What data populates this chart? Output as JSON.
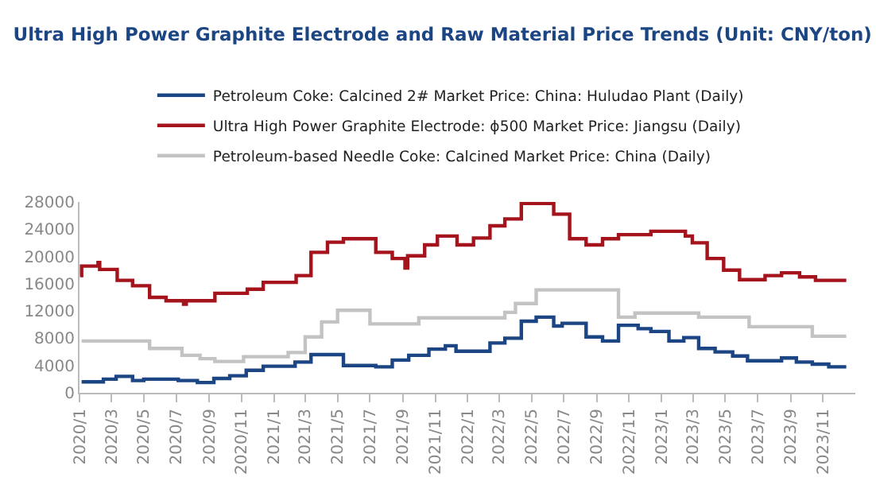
{
  "chart_data": {
    "type": "step",
    "title": "Ultra High Power Graphite Electrode and Raw Material Price Trends (Unit: CNY/ton)",
    "xlim": [
      "2020-01-01",
      "2024-01-01"
    ],
    "xticks": [
      {
        "value": "2020-01",
        "label": "2020/1"
      },
      {
        "value": "2020-03",
        "label": "2020/3"
      },
      {
        "value": "2020-05",
        "label": "2020/5"
      },
      {
        "value": "2020-07",
        "label": "2020/7"
      },
      {
        "value": "2020-09",
        "label": "2020/9"
      },
      {
        "value": "2020-11",
        "label": "2020/11"
      },
      {
        "value": "2021-01",
        "label": "2021/1"
      },
      {
        "value": "2021-03",
        "label": "2021/3"
      },
      {
        "value": "2021-05",
        "label": "2021/5"
      },
      {
        "value": "2021-07",
        "label": "2021/7"
      },
      {
        "value": "2021-09",
        "label": "2021/9"
      },
      {
        "value": "2021-11",
        "label": "2021/11"
      },
      {
        "value": "2022-01",
        "label": "2022/1"
      },
      {
        "value": "2022-03",
        "label": "2022/3"
      },
      {
        "value": "2022-05",
        "label": "2022/5"
      },
      {
        "value": "2022-07",
        "label": "2022/7"
      },
      {
        "value": "2022-09",
        "label": "2022/9"
      },
      {
        "value": "2022-11",
        "label": "2022/11"
      },
      {
        "value": "2023-01",
        "label": "2023/1"
      },
      {
        "value": "2023-03",
        "label": "2023/3"
      },
      {
        "value": "2023-05",
        "label": "2023/5"
      },
      {
        "value": "2023-07",
        "label": "2023/7"
      },
      {
        "value": "2023-09",
        "label": "2023/9"
      },
      {
        "value": "2023-11",
        "label": "2023/11"
      }
    ],
    "ylim": [
      0,
      28000
    ],
    "yticks": [
      0,
      4000,
      8000,
      12000,
      16000,
      20000,
      24000,
      28000
    ],
    "grid": false,
    "legend": "top",
    "line_style": "solid",
    "series": [
      {
        "name": "Petroleum Coke: Calcined 2# Market Price: China: Huludao Plant (Daily)",
        "color": "#1b4583",
        "x": [
          "2020-01-05",
          "2020-02-15",
          "2020-03-10",
          "2020-04-10",
          "2020-05-01",
          "2020-07-05",
          "2020-08-10",
          "2020-09-10",
          "2020-10-10",
          "2020-11-10",
          "2020-12-12",
          "2021-02-10",
          "2021-03-12",
          "2021-05-12",
          "2021-07-12",
          "2021-08-12",
          "2021-09-12",
          "2021-10-20",
          "2021-11-20",
          "2021-12-10",
          "2022-02-12",
          "2022-03-12",
          "2022-04-12",
          "2022-05-10",
          "2022-06-12",
          "2022-06-28",
          "2022-08-12",
          "2022-09-12",
          "2022-10-12",
          "2022-11-18",
          "2022-12-12",
          "2023-01-15",
          "2023-02-12",
          "2023-03-12",
          "2023-04-12",
          "2023-05-15",
          "2023-06-12",
          "2023-08-15",
          "2023-09-12",
          "2023-10-12",
          "2023-11-12",
          "2023-12-15"
        ],
        "values": [
          1600,
          2000,
          2400,
          1800,
          2000,
          1800,
          1500,
          2100,
          2500,
          3300,
          3900,
          4500,
          5600,
          4000,
          3800,
          4800,
          5500,
          6400,
          6900,
          6100,
          7300,
          8000,
          10500,
          11100,
          9800,
          10200,
          8200,
          7600,
          9900,
          9400,
          9000,
          7600,
          8100,
          6500,
          6000,
          5400,
          4700,
          5100,
          4500,
          4200,
          3800,
          3800
        ]
      },
      {
        "name": "Ultra High Power Graphite Electrode: ϕ500 Market Price: Jiangsu (Daily)",
        "color": "#a5141d",
        "x": [
          "2020-01-02",
          "2020-01-05",
          "2020-02-05",
          "2020-02-08",
          "2020-03-12",
          "2020-04-10",
          "2020-05-12",
          "2020-06-12",
          "2020-07-15",
          "2020-07-20",
          "2020-09-12",
          "2020-11-12",
          "2020-12-12",
          "2021-02-12",
          "2021-03-12",
          "2021-04-12",
          "2021-05-12",
          "2021-07-12",
          "2021-08-12",
          "2021-09-05",
          "2021-09-10",
          "2021-10-12",
          "2021-11-05",
          "2021-11-12",
          "2021-12-12",
          "2022-01-12",
          "2022-02-12",
          "2022-03-12",
          "2022-04-12",
          "2022-06-12",
          "2022-07-12",
          "2022-08-12",
          "2022-09-12",
          "2022-10-12",
          "2022-12-12",
          "2023-02-15",
          "2023-02-28",
          "2023-03-28",
          "2023-04-28",
          "2023-05-28",
          "2023-07-15",
          "2023-08-15",
          "2023-09-18",
          "2023-10-18",
          "2023-12-15"
        ],
        "values": [
          17200,
          18600,
          19100,
          18100,
          16500,
          15700,
          14000,
          13500,
          13000,
          13500,
          14600,
          15200,
          16200,
          17200,
          20600,
          22100,
          22600,
          20600,
          19700,
          18300,
          20100,
          21700,
          23000,
          23000,
          21700,
          22700,
          24500,
          25500,
          27800,
          26200,
          22600,
          21700,
          22600,
          23200,
          23700,
          23000,
          22000,
          19700,
          18000,
          16600,
          17200,
          17600,
          17000,
          16500,
          16500
        ]
      },
      {
        "name": "Petroleum-based Needle Coke: Calcined Market Price: China (Daily)",
        "color": "#c3c3c3",
        "x": [
          "2020-01-05",
          "2020-05-12",
          "2020-07-12",
          "2020-08-15",
          "2020-09-12",
          "2020-11-05",
          "2021-01-28",
          "2021-03-01",
          "2021-04-01",
          "2021-05-01",
          "2021-07-01",
          "2021-10-01",
          "2022-03-12",
          "2022-04-01",
          "2022-05-10",
          "2022-10-12",
          "2022-11-12",
          "2023-03-12",
          "2023-06-15",
          "2023-10-12",
          "2023-12-15"
        ],
        "values": [
          7600,
          6500,
          5500,
          5000,
          4600,
          5300,
          5900,
          8200,
          10400,
          12100,
          10100,
          11000,
          11800,
          13100,
          15100,
          11100,
          11700,
          11100,
          9700,
          8300,
          8300
        ]
      }
    ]
  }
}
